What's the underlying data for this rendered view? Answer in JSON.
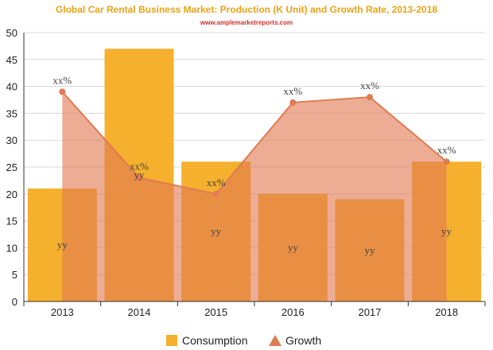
{
  "chart_data": {
    "type": "bar",
    "title": "Global Car Rental Business Market: Production (K Unit) and Growth Rate, 2013-2018",
    "subtitle": "www.amplemarketreports.com",
    "categories": [
      "2013",
      "2014",
      "2015",
      "2016",
      "2017",
      "2018"
    ],
    "ylim": [
      0,
      50
    ],
    "yticks": [
      0,
      5,
      10,
      15,
      20,
      25,
      30,
      35,
      40,
      45,
      50
    ],
    "grid": true,
    "legend_position": "bottom",
    "series": [
      {
        "name": "Consumption",
        "kind": "bar",
        "values": [
          21,
          47,
          26,
          20,
          19,
          26
        ],
        "data_labels": [
          "yy",
          "yy",
          "yy",
          "yy",
          "yy",
          "yy"
        ],
        "color": "#f5b02e"
      },
      {
        "name": "Growth",
        "kind": "area-line",
        "values": [
          39,
          23,
          20,
          37,
          38,
          26
        ],
        "data_labels": [
          "xx%",
          "xx%",
          "xx%",
          "xx%",
          "xx%",
          "xx%"
        ],
        "color": "#e07b52",
        "fill_color": "#e07b52"
      }
    ],
    "colors": {
      "title": "#e8a317",
      "subtitle": "#d0312d",
      "grid": "#d8d8d8",
      "axis": "#333333"
    }
  }
}
